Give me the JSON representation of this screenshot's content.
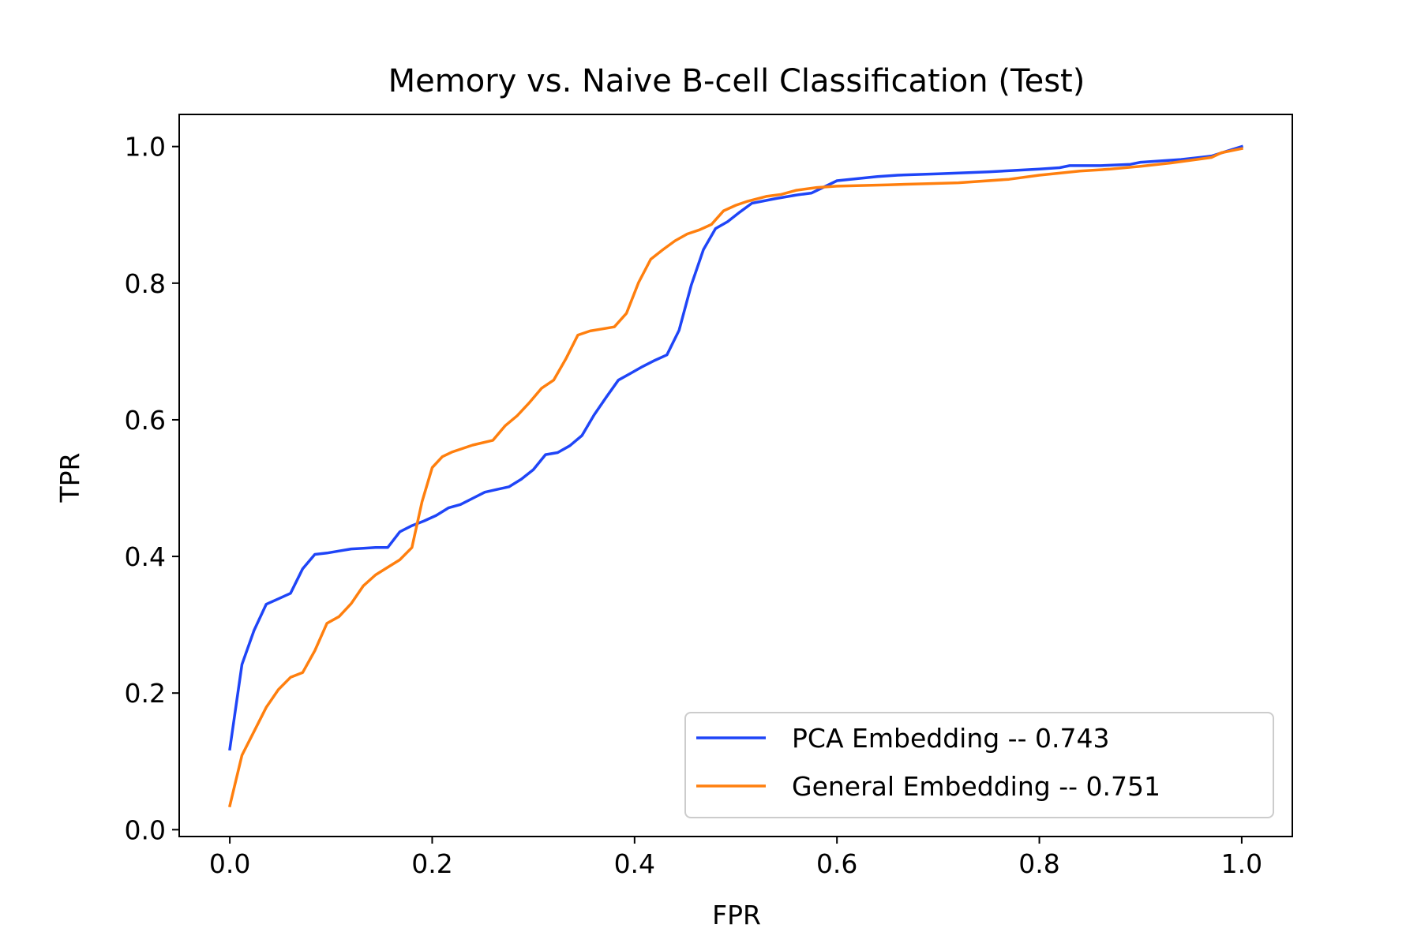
{
  "chart_data": {
    "type": "line",
    "title": "Memory vs. Naive B-cell Classification (Test)",
    "xlabel": "FPR",
    "ylabel": "TPR",
    "xlim": [
      -0.05,
      1.05
    ],
    "ylim": [
      -0.01,
      1.047
    ],
    "xticks": [
      "0.0",
      "0.2",
      "0.4",
      "0.6",
      "0.8",
      "1.0"
    ],
    "yticks": [
      "0.0",
      "0.2",
      "0.4",
      "0.6",
      "0.8",
      "1.0"
    ],
    "grid": false,
    "legend_position": "bottom-right",
    "series": [
      {
        "name": "PCA Embedding -- 0.743",
        "color": "#1f45f7",
        "x": [
          0.0,
          0.012,
          0.024,
          0.036,
          0.048,
          0.06,
          0.072,
          0.084,
          0.096,
          0.108,
          0.12,
          0.132,
          0.144,
          0.156,
          0.168,
          0.18,
          0.192,
          0.204,
          0.216,
          0.228,
          0.24,
          0.252,
          0.264,
          0.276,
          0.288,
          0.3,
          0.312,
          0.324,
          0.336,
          0.348,
          0.36,
          0.372,
          0.384,
          0.396,
          0.408,
          0.42,
          0.432,
          0.444,
          0.456,
          0.468,
          0.48,
          0.492,
          0.504,
          0.516,
          0.54,
          0.56,
          0.575,
          0.6,
          0.62,
          0.64,
          0.66,
          0.7,
          0.75,
          0.8,
          0.82,
          0.83,
          0.86,
          0.89,
          0.9,
          0.94,
          0.97,
          0.985,
          1.0
        ],
        "y": [
          0.118,
          0.242,
          0.292,
          0.33,
          0.338,
          0.346,
          0.382,
          0.403,
          0.405,
          0.408,
          0.411,
          0.412,
          0.413,
          0.413,
          0.436,
          0.445,
          0.452,
          0.46,
          0.471,
          0.476,
          0.485,
          0.494,
          0.498,
          0.502,
          0.513,
          0.527,
          0.549,
          0.552,
          0.562,
          0.577,
          0.607,
          0.633,
          0.658,
          0.668,
          0.678,
          0.687,
          0.695,
          0.731,
          0.797,
          0.849,
          0.88,
          0.89,
          0.904,
          0.917,
          0.924,
          0.929,
          0.932,
          0.95,
          0.953,
          0.956,
          0.958,
          0.96,
          0.963,
          0.967,
          0.969,
          0.972,
          0.972,
          0.974,
          0.977,
          0.981,
          0.986,
          0.993,
          1.0
        ]
      },
      {
        "name": "General Embedding -- 0.751",
        "color": "#ff7f0e",
        "x": [
          0.0,
          0.012,
          0.024,
          0.036,
          0.048,
          0.06,
          0.072,
          0.084,
          0.096,
          0.108,
          0.12,
          0.132,
          0.144,
          0.156,
          0.168,
          0.18,
          0.19,
          0.2,
          0.21,
          0.22,
          0.24,
          0.26,
          0.272,
          0.284,
          0.296,
          0.308,
          0.32,
          0.332,
          0.344,
          0.356,
          0.368,
          0.38,
          0.392,
          0.404,
          0.416,
          0.428,
          0.44,
          0.452,
          0.464,
          0.476,
          0.488,
          0.5,
          0.512,
          0.53,
          0.545,
          0.56,
          0.58,
          0.6,
          0.65,
          0.7,
          0.72,
          0.77,
          0.8,
          0.82,
          0.84,
          0.87,
          0.9,
          0.93,
          0.97,
          0.98,
          1.0
        ],
        "y": [
          0.035,
          0.109,
          0.144,
          0.179,
          0.205,
          0.223,
          0.23,
          0.262,
          0.302,
          0.312,
          0.331,
          0.357,
          0.373,
          0.384,
          0.395,
          0.413,
          0.48,
          0.53,
          0.546,
          0.553,
          0.563,
          0.57,
          0.591,
          0.606,
          0.625,
          0.646,
          0.658,
          0.689,
          0.724,
          0.73,
          0.733,
          0.736,
          0.756,
          0.801,
          0.835,
          0.849,
          0.862,
          0.872,
          0.878,
          0.886,
          0.906,
          0.914,
          0.92,
          0.927,
          0.93,
          0.936,
          0.94,
          0.942,
          0.944,
          0.946,
          0.947,
          0.952,
          0.958,
          0.961,
          0.964,
          0.967,
          0.971,
          0.976,
          0.984,
          0.991,
          0.997
        ]
      }
    ]
  }
}
